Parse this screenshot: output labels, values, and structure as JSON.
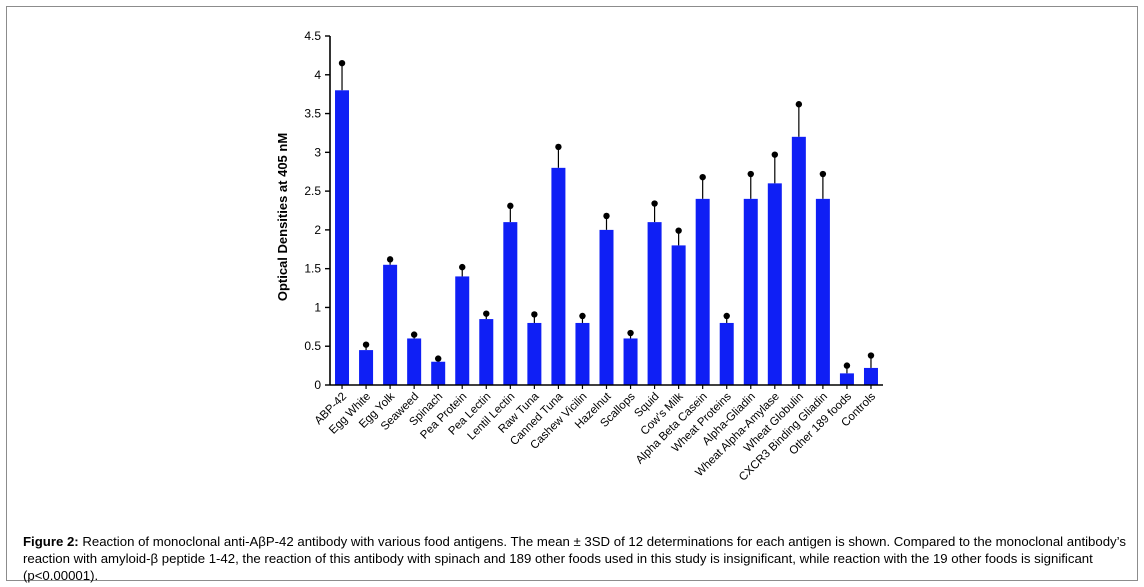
{
  "figure": {
    "caption_label": "Figure 2:",
    "caption_text": " Reaction of monoclonal anti-AβP-42 antibody with various food antigens. The mean ± 3SD of 12 determinations for each antigen is shown. Compared to the monoclonal antibody’s reaction with amyloid-β peptide 1-42, the reaction of this antibody with spinach and 189 other foods used in this study is insignificant, while reaction with the 19 other foods is significant (p<0.00001)."
  },
  "chart_data": {
    "type": "bar",
    "title": "",
    "xlabel": "",
    "ylabel": "Optical Densities at 405 nM",
    "ylim": [
      0,
      4.5
    ],
    "yticks": [
      "0",
      "0.5",
      "1",
      "1.5",
      "2",
      "2.5",
      "3",
      "3.5",
      "4",
      "4.5"
    ],
    "ytick_values": [
      0,
      0.5,
      1,
      1.5,
      2,
      2.5,
      3,
      3.5,
      4,
      4.5
    ],
    "grid": false,
    "legend": "none",
    "bar_color": "#0f1ff5",
    "categories": [
      "ABP-42",
      "Egg White",
      "Egg Yolk",
      "Seaweed",
      "Spinach",
      "Pea Protein",
      "Pea Lectin",
      "Lentil Lectin",
      "Raw Tuna",
      "Canned Tuna",
      "Cashew Vicilin",
      "Hazelnut",
      "Scallops",
      "Squid",
      "Cow's Milk",
      "Alpha Beta Casein",
      "Wheat Proteins",
      "Alpha-Gliadin",
      "Wheat Alpha-Amylase",
      "Wheat Globulin",
      "CXCR3 Binding Gliadin",
      "Other 189 foods",
      "Controls"
    ],
    "values": [
      3.8,
      0.45,
      1.55,
      0.6,
      0.3,
      1.4,
      0.85,
      2.1,
      0.8,
      2.8,
      0.8,
      2.0,
      0.6,
      2.1,
      1.8,
      2.4,
      0.8,
      2.4,
      2.6,
      3.2,
      2.4,
      0.15,
      0.22
    ],
    "error_upper": [
      4.15,
      0.52,
      1.62,
      0.65,
      0.34,
      1.52,
      0.92,
      2.31,
      0.91,
      3.07,
      0.89,
      2.18,
      0.67,
      2.34,
      1.99,
      2.68,
      0.89,
      2.72,
      2.97,
      3.62,
      2.72,
      0.25,
      0.38
    ]
  }
}
